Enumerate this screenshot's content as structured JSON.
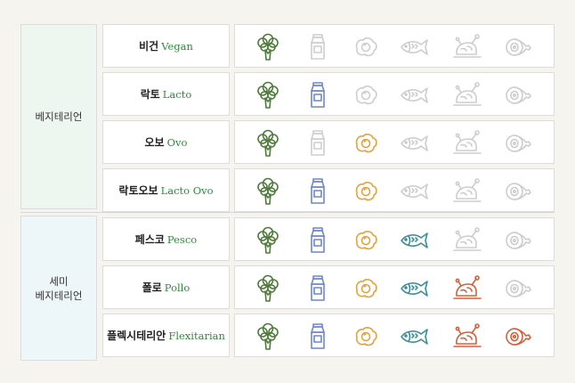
{
  "groups": [
    {
      "label": "베지테리언"
    },
    {
      "label": "세미\n베지테리언"
    }
  ],
  "icons": [
    {
      "name": "vegetable",
      "icon": "broccoli-icon"
    },
    {
      "name": "dairy",
      "icon": "milk-carton-icon"
    },
    {
      "name": "egg",
      "icon": "fried-egg-icon"
    },
    {
      "name": "fish",
      "icon": "fish-icon"
    },
    {
      "name": "poultry",
      "icon": "roast-chicken-icon"
    },
    {
      "name": "meat",
      "icon": "ham-icon"
    }
  ],
  "colors": {
    "vegetable": "#4e7a3a",
    "dairy": "#6f86c7",
    "egg": "#e5a23c",
    "fish": "#3d8e96",
    "poultry": "#d4603b",
    "meat": "#d4603b",
    "inactive": "#cdcdcd",
    "group_bg_vegetarian": "#eef7ef",
    "group_bg_semi": "#edf6f9"
  },
  "rows": [
    {
      "group": 0,
      "name_ko": "비건",
      "name_en": "Vegan",
      "allowed": [
        true,
        false,
        false,
        false,
        false,
        false
      ]
    },
    {
      "group": 0,
      "name_ko": "락토",
      "name_en": "Lacto",
      "allowed": [
        true,
        true,
        false,
        false,
        false,
        false
      ]
    },
    {
      "group": 0,
      "name_ko": "오보",
      "name_en": "Ovo",
      "allowed": [
        true,
        false,
        true,
        false,
        false,
        false
      ]
    },
    {
      "group": 0,
      "name_ko": "락토오보",
      "name_en": "Lacto Ovo",
      "allowed": [
        true,
        true,
        true,
        false,
        false,
        false
      ]
    },
    {
      "group": 1,
      "name_ko": "페스코",
      "name_en": "Pesco",
      "allowed": [
        true,
        true,
        true,
        true,
        false,
        false
      ]
    },
    {
      "group": 1,
      "name_ko": "폴로",
      "name_en": "Pollo",
      "allowed": [
        true,
        true,
        true,
        true,
        true,
        false
      ]
    },
    {
      "group": 1,
      "name_ko": "플렉시테리안",
      "name_en": "Flexitarian",
      "allowed": [
        true,
        true,
        true,
        true,
        true,
        true
      ]
    }
  ]
}
